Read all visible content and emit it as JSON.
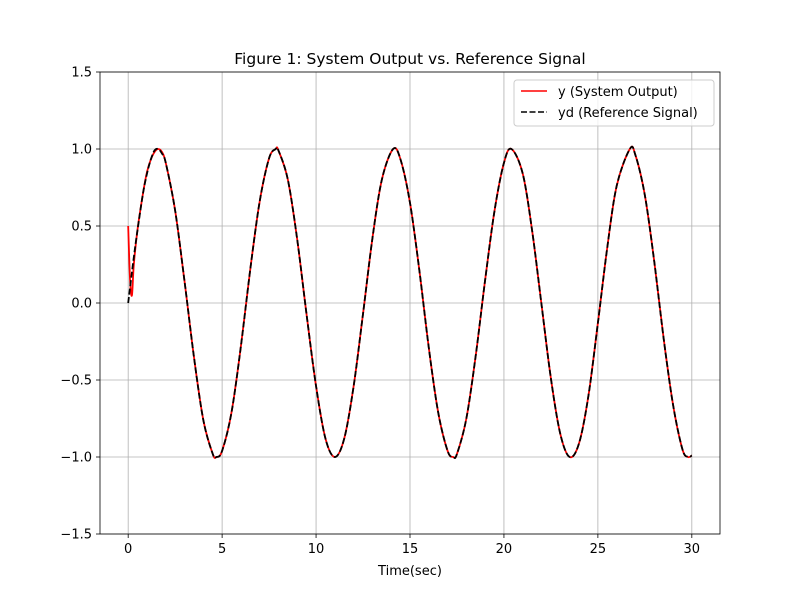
{
  "chart_data": {
    "type": "line",
    "title": "Figure 1: System Output vs. Reference Signal",
    "xlabel": "Time(sec)",
    "ylabel": "",
    "xlim": [
      -1.5,
      31.5
    ],
    "ylim": [
      -1.5,
      1.5
    ],
    "xticks": [
      0,
      5,
      10,
      15,
      20,
      25,
      30
    ],
    "yticks": [
      -1.5,
      -1.0,
      -0.5,
      0.0,
      0.5,
      1.0,
      1.5
    ],
    "xtick_labels": [
      "0",
      "5",
      "10",
      "15",
      "20",
      "25",
      "30"
    ],
    "ytick_labels": [
      "−1.5",
      "−1.0",
      "−0.5",
      "0.0",
      "0.5",
      "1.0",
      "1.5"
    ],
    "grid": true,
    "legend_position": "top-right",
    "series": [
      {
        "name": "y (System Output)",
        "color": "#ff0000",
        "style": "solid",
        "x": [
          0,
          0.1,
          0.2,
          0.3,
          0.5,
          0.8,
          1.0,
          1.2,
          1.4,
          1.6,
          1.8,
          2.0,
          2.5,
          3.0,
          3.5,
          4.0,
          4.5,
          4.7,
          5.0,
          5.5,
          6.0,
          6.5,
          7.0,
          7.5,
          7.85,
          8.0,
          8.5,
          9.0,
          9.5,
          10.0,
          10.5,
          11.0,
          11.5,
          12.0,
          12.5,
          13.0,
          13.5,
          14.1,
          14.5,
          15.0,
          15.5,
          16.0,
          16.5,
          17.0,
          17.3,
          17.5,
          18.0,
          18.5,
          19.0,
          19.5,
          20.0,
          20.4,
          21.0,
          21.5,
          22.0,
          22.5,
          23.0,
          23.5,
          24.0,
          24.5,
          25.0,
          25.5,
          26.0,
          26.7,
          27.0,
          27.5,
          28.0,
          28.5,
          29.0,
          29.5,
          29.8,
          30.0
        ],
        "y": [
          0.5,
          0.15,
          0.05,
          0.25,
          0.48,
          0.72,
          0.85,
          0.93,
          0.98,
          1.0,
          0.98,
          0.91,
          0.6,
          0.14,
          -0.35,
          -0.76,
          -0.98,
          -1.0,
          -0.96,
          -0.71,
          -0.28,
          0.22,
          0.66,
          0.94,
          1.0,
          0.99,
          0.8,
          0.41,
          -0.08,
          -0.54,
          -0.88,
          -1.0,
          -0.88,
          -0.54,
          -0.07,
          0.42,
          0.8,
          1.0,
          0.93,
          0.65,
          0.21,
          -0.29,
          -0.71,
          -0.96,
          -1.0,
          -0.98,
          -0.75,
          -0.34,
          0.15,
          0.6,
          0.91,
          1.0,
          0.84,
          0.47,
          -0.01,
          -0.49,
          -0.85,
          -1.0,
          -0.91,
          -0.6,
          -0.13,
          0.36,
          0.76,
          1.0,
          0.96,
          0.7,
          0.27,
          -0.23,
          -0.66,
          -0.95,
          -1.0,
          -0.99
        ]
      },
      {
        "name": "yd (Reference Signal)",
        "color": "#000000",
        "style": "dashed",
        "x": [
          0,
          0.2,
          0.4,
          0.6,
          0.8,
          1.0,
          1.2,
          1.4,
          1.6,
          1.8,
          2.0,
          2.5,
          3.0,
          3.5,
          4.0,
          4.5,
          4.7,
          5.0,
          5.5,
          6.0,
          6.5,
          7.0,
          7.5,
          7.85,
          8.0,
          8.5,
          9.0,
          9.5,
          10.0,
          10.5,
          11.0,
          11.5,
          12.0,
          12.5,
          13.0,
          13.5,
          14.1,
          14.5,
          15.0,
          15.5,
          16.0,
          16.5,
          17.0,
          17.3,
          17.5,
          18.0,
          18.5,
          19.0,
          19.5,
          20.0,
          20.4,
          21.0,
          21.5,
          22.0,
          22.5,
          23.0,
          23.5,
          24.0,
          24.5,
          25.0,
          25.5,
          26.0,
          26.7,
          27.0,
          27.5,
          28.0,
          28.5,
          29.0,
          29.5,
          29.8,
          30.0
        ],
        "y": [
          0.0,
          0.2,
          0.39,
          0.56,
          0.72,
          0.84,
          0.93,
          0.99,
          1.0,
          0.97,
          0.91,
          0.6,
          0.14,
          -0.35,
          -0.76,
          -0.98,
          -1.0,
          -0.96,
          -0.71,
          -0.28,
          0.22,
          0.66,
          0.94,
          1.0,
          0.99,
          0.8,
          0.41,
          -0.08,
          -0.54,
          -0.88,
          -1.0,
          -0.88,
          -0.54,
          -0.07,
          0.42,
          0.8,
          1.0,
          0.93,
          0.65,
          0.21,
          -0.29,
          -0.71,
          -0.96,
          -1.0,
          -0.98,
          -0.75,
          -0.34,
          0.15,
          0.6,
          0.91,
          1.0,
          0.84,
          0.47,
          -0.01,
          -0.49,
          -0.85,
          -1.0,
          -0.91,
          -0.6,
          -0.13,
          0.36,
          0.76,
          1.0,
          0.96,
          0.7,
          0.27,
          -0.23,
          -0.66,
          -0.95,
          -1.0,
          -0.99
        ]
      }
    ]
  }
}
